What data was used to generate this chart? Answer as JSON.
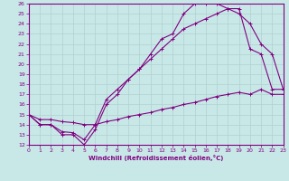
{
  "xlabel": "Windchill (Refroidissement éolien,°C)",
  "xlim": [
    0,
    23
  ],
  "ylim": [
    12,
    26
  ],
  "xticks": [
    0,
    1,
    2,
    3,
    4,
    5,
    6,
    7,
    8,
    9,
    10,
    11,
    12,
    13,
    14,
    15,
    16,
    17,
    18,
    19,
    20,
    21,
    22,
    23
  ],
  "yticks": [
    12,
    13,
    14,
    15,
    16,
    17,
    18,
    19,
    20,
    21,
    22,
    23,
    24,
    25,
    26
  ],
  "bg_color": "#c8e8e8",
  "line_color": "#800080",
  "grid_color": "#aacccc",
  "curves": [
    {
      "x": [
        0,
        1,
        2,
        3,
        4,
        5,
        6,
        7,
        8,
        9,
        10,
        11,
        12,
        13,
        14,
        15,
        16,
        17,
        18,
        19,
        20,
        21,
        22,
        23
      ],
      "y": [
        15,
        14,
        14,
        13,
        13,
        12,
        13.5,
        16,
        17,
        18.5,
        19.5,
        21,
        22.5,
        23,
        25,
        26,
        26,
        26,
        25.5,
        25,
        24,
        22,
        21,
        17.5
      ]
    },
    {
      "x": [
        0,
        1,
        2,
        3,
        4,
        5,
        6,
        7,
        8,
        9,
        10,
        11,
        12,
        13,
        14,
        15,
        16,
        17,
        18,
        19,
        20,
        21,
        22,
        23
      ],
      "y": [
        15,
        14,
        14,
        13.3,
        13.2,
        12.5,
        14,
        16.5,
        17.5,
        18.5,
        19.5,
        20.5,
        21.5,
        22.5,
        23.5,
        24,
        24.5,
        25,
        25.5,
        25.5,
        21.5,
        21,
        17.5,
        17.5
      ]
    },
    {
      "x": [
        0,
        1,
        2,
        3,
        4,
        5,
        6,
        7,
        8,
        9,
        10,
        11,
        12,
        13,
        14,
        15,
        16,
        17,
        18,
        19,
        20,
        21,
        22,
        23
      ],
      "y": [
        15,
        14.5,
        14.5,
        14.3,
        14.2,
        14,
        14,
        14.3,
        14.5,
        14.8,
        15,
        15.2,
        15.5,
        15.7,
        16,
        16.2,
        16.5,
        16.8,
        17,
        17.2,
        17,
        17.5,
        17,
        17
      ]
    }
  ]
}
